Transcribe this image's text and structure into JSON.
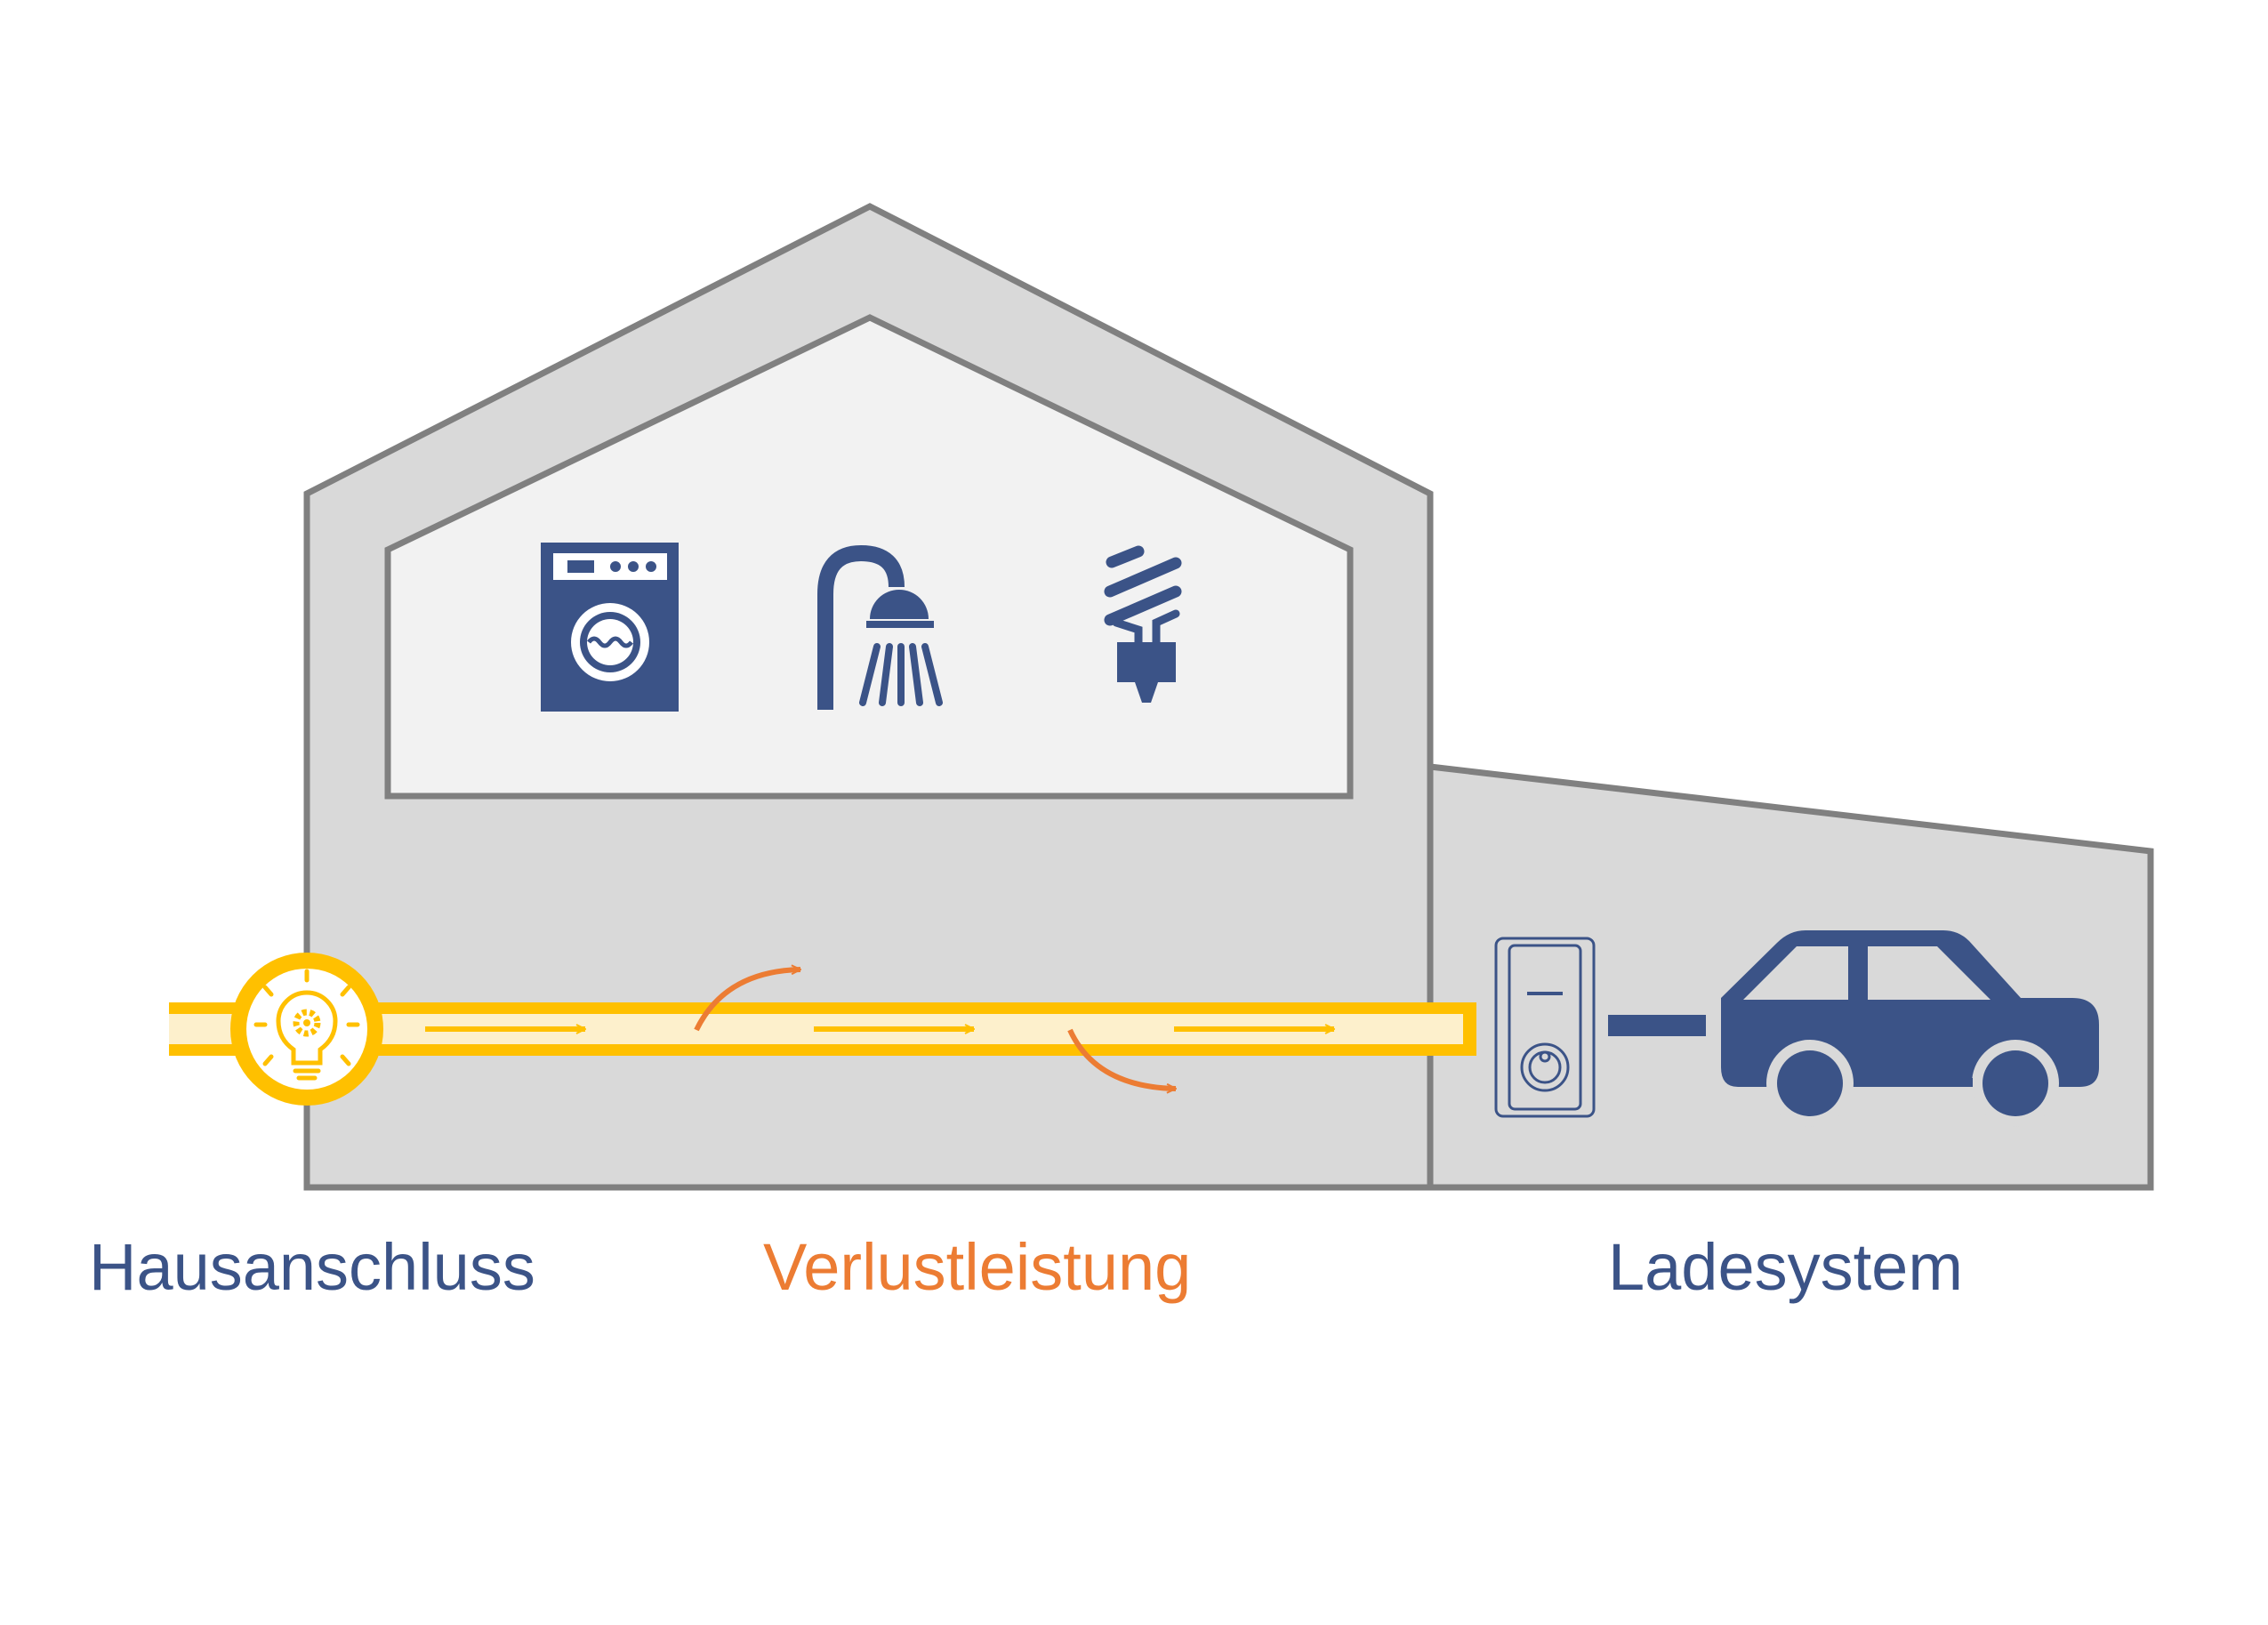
{
  "labels": {
    "house_connection": "Hausanschluss",
    "power_loss": "Verlustleistung",
    "charging_system": "Ladesystem"
  },
  "colors": {
    "building_fill": "#d9d9d9",
    "building_stroke": "#808080",
    "attic_fill": "#f2f2f2",
    "icon_blue": "#3b5387",
    "power_yellow": "#ffc000",
    "power_light": "#fdf0cc",
    "loss_orange": "#ec7c33"
  },
  "icons": {
    "appliances": [
      "washing-machine-icon",
      "shower-icon",
      "energy-saving-bulb-icon"
    ],
    "connection": "lightbulb-gear-icon",
    "wallbox": "wallbox-charger-icon",
    "vehicle": "car-icon"
  }
}
